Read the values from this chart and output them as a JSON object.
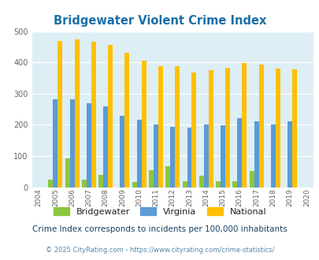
{
  "title": "Bridgewater Violent Crime Index",
  "years": [
    2004,
    2005,
    2006,
    2007,
    2008,
    2009,
    2010,
    2011,
    2012,
    2013,
    2014,
    2015,
    2016,
    2017,
    2018,
    2019,
    2020
  ],
  "bridgewater": [
    0,
    25,
    93,
    23,
    40,
    0,
    17,
    55,
    68,
    20,
    37,
    18,
    18,
    52,
    0,
    0,
    0
  ],
  "virginia": [
    0,
    283,
    283,
    270,
    258,
    228,
    215,
    200,
    194,
    190,
    200,
    199,
    220,
    210,
    202,
    210,
    0
  ],
  "national": [
    0,
    469,
    473,
    467,
    455,
    432,
    405,
    387,
    387,
    367,
    376,
    383,
    397,
    394,
    380,
    379,
    0
  ],
  "bar_colors": {
    "bridgewater": "#8dc63f",
    "virginia": "#5b9bd5",
    "national": "#ffc000"
  },
  "bg_color": "#ddeef5",
  "fig_bg": "#ffffff",
  "ylim": [
    0,
    500
  ],
  "yticks": [
    0,
    100,
    200,
    300,
    400,
    500
  ],
  "subtitle": "Crime Index corresponds to incidents per 100,000 inhabitants",
  "footer": "© 2025 CityRating.com - https://www.cityrating.com/crime-statistics/",
  "title_color": "#1a6fa8",
  "subtitle_color": "#1a4060",
  "footer_color": "#5588aa",
  "legend_labels": [
    "Bridgewater",
    "Virginia",
    "National"
  ]
}
